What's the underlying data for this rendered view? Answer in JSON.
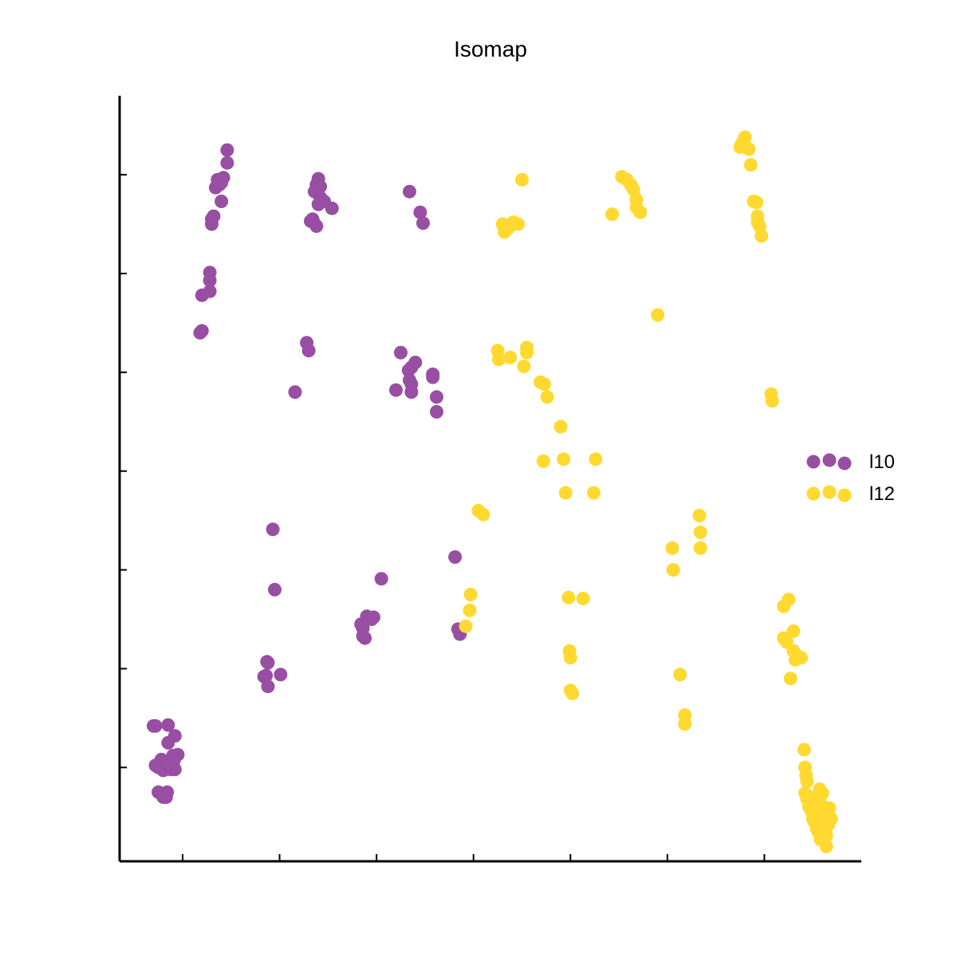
{
  "chart_data": {
    "type": "scatter",
    "title": "Isomap",
    "xlabel": "",
    "ylabel": "",
    "xlim": [
      -0.65,
      7.0
    ],
    "ylim": [
      -0.95,
      6.8
    ],
    "xticks": [
      0,
      1,
      2,
      3,
      4,
      5,
      6
    ],
    "yticks": [
      0,
      1,
      2,
      3,
      4,
      5,
      6
    ],
    "show_tick_labels": false,
    "grid": false,
    "legend_position": "right",
    "series": [
      {
        "name": "l10",
        "color": "#984ea3",
        "points": [
          [
            -0.3,
            0.42
          ],
          [
            -0.28,
            0.42
          ],
          [
            -0.15,
            0.43
          ],
          [
            -0.08,
            0.32
          ],
          [
            -0.15,
            0.25
          ],
          [
            -0.05,
            0.13
          ],
          [
            -0.1,
            0.12
          ],
          [
            -0.22,
            0.08
          ],
          [
            -0.28,
            0.02
          ],
          [
            -0.25,
            0.0
          ],
          [
            -0.2,
            -0.03
          ],
          [
            -0.12,
            -0.02
          ],
          [
            -0.08,
            -0.02
          ],
          [
            -0.18,
            -0.02
          ],
          [
            -0.09,
            0.07
          ],
          [
            -0.25,
            -0.25
          ],
          [
            -0.2,
            -0.3
          ],
          [
            -0.17,
            -0.3
          ],
          [
            -0.16,
            -0.25
          ],
          [
            0.18,
            4.4
          ],
          [
            0.2,
            4.42
          ],
          [
            0.2,
            4.78
          ],
          [
            0.28,
            4.82
          ],
          [
            0.28,
            4.93
          ],
          [
            0.28,
            5.01
          ],
          [
            0.3,
            5.5
          ],
          [
            0.3,
            5.55
          ],
          [
            0.32,
            5.58
          ],
          [
            0.34,
            5.87
          ],
          [
            0.36,
            5.95
          ],
          [
            0.4,
            5.92
          ],
          [
            0.38,
            5.9
          ],
          [
            0.42,
            5.97
          ],
          [
            0.4,
            5.73
          ],
          [
            0.46,
            6.12
          ],
          [
            0.46,
            6.25
          ],
          [
            0.84,
            0.92
          ],
          [
            0.86,
            0.93
          ],
          [
            0.87,
            1.07
          ],
          [
            0.88,
            0.82
          ],
          [
            0.88,
            1.06
          ],
          [
            0.93,
            2.41
          ],
          [
            0.95,
            1.8
          ],
          [
            1.01,
            0.94
          ],
          [
            1.16,
            3.8
          ],
          [
            1.28,
            4.3
          ],
          [
            1.3,
            4.22
          ],
          [
            1.32,
            5.53
          ],
          [
            1.35,
            5.52
          ],
          [
            1.38,
            5.48
          ],
          [
            1.34,
            5.55
          ],
          [
            1.36,
            5.83
          ],
          [
            1.38,
            5.9
          ],
          [
            1.4,
            5.96
          ],
          [
            1.42,
            5.88
          ],
          [
            1.42,
            5.77
          ],
          [
            1.4,
            5.7
          ],
          [
            1.46,
            5.73
          ],
          [
            1.54,
            5.66
          ],
          [
            1.84,
            1.45
          ],
          [
            1.86,
            1.41
          ],
          [
            1.86,
            1.33
          ],
          [
            1.88,
            1.31
          ],
          [
            1.9,
            1.53
          ],
          [
            1.95,
            1.5
          ],
          [
            1.97,
            1.52
          ],
          [
            2.05,
            1.91
          ],
          [
            2.2,
            3.82
          ],
          [
            2.25,
            4.2
          ],
          [
            2.34,
            5.83
          ],
          [
            2.33,
            4.02
          ],
          [
            2.34,
            3.92
          ],
          [
            2.36,
            3.8
          ],
          [
            2.36,
            4.05
          ],
          [
            2.36,
            3.88
          ],
          [
            2.4,
            4.1
          ],
          [
            2.45,
            5.62
          ],
          [
            2.48,
            5.51
          ],
          [
            2.58,
            3.98
          ],
          [
            2.58,
            3.95
          ],
          [
            2.62,
            3.75
          ],
          [
            2.62,
            3.6
          ],
          [
            2.81,
            2.13
          ],
          [
            2.84,
            1.4
          ],
          [
            2.86,
            1.35
          ]
        ]
      },
      {
        "name": "l12",
        "color": "#ffd92f",
        "points": [
          [
            2.92,
            1.43
          ],
          [
            2.96,
            1.59
          ],
          [
            2.97,
            1.75
          ],
          [
            3.05,
            2.6
          ],
          [
            3.1,
            2.56
          ],
          [
            3.25,
            4.22
          ],
          [
            3.26,
            4.13
          ],
          [
            3.3,
            5.5
          ],
          [
            3.32,
            5.42
          ],
          [
            3.36,
            5.46
          ],
          [
            3.38,
            4.15
          ],
          [
            3.41,
            5.52
          ],
          [
            3.46,
            5.5
          ],
          [
            3.5,
            5.95
          ],
          [
            3.52,
            4.06
          ],
          [
            3.55,
            4.2
          ],
          [
            3.55,
            4.25
          ],
          [
            3.69,
            3.9
          ],
          [
            3.72,
            3.1
          ],
          [
            3.73,
            3.88
          ],
          [
            3.76,
            3.75
          ],
          [
            3.9,
            3.45
          ],
          [
            3.93,
            3.12
          ],
          [
            3.95,
            2.78
          ],
          [
            3.98,
            1.72
          ],
          [
            3.99,
            1.18
          ],
          [
            4.0,
            1.11
          ],
          [
            4.0,
            0.78
          ],
          [
            4.02,
            0.75
          ],
          [
            4.13,
            1.71
          ],
          [
            4.24,
            2.78
          ],
          [
            4.26,
            3.12
          ],
          [
            4.43,
            5.6
          ],
          [
            4.53,
            5.98
          ],
          [
            4.58,
            5.95
          ],
          [
            4.62,
            5.9
          ],
          [
            4.65,
            5.85
          ],
          [
            4.68,
            5.75
          ],
          [
            4.68,
            5.67
          ],
          [
            4.72,
            5.62
          ],
          [
            4.9,
            4.58
          ],
          [
            5.05,
            2.22
          ],
          [
            5.06,
            2.0
          ],
          [
            5.13,
            0.94
          ],
          [
            5.18,
            0.53
          ],
          [
            5.18,
            0.44
          ],
          [
            5.33,
            2.55
          ],
          [
            5.34,
            2.38
          ],
          [
            5.34,
            2.22
          ],
          [
            5.75,
            6.28
          ],
          [
            5.77,
            6.32
          ],
          [
            5.8,
            6.38
          ],
          [
            5.82,
            6.27
          ],
          [
            5.84,
            6.26
          ],
          [
            5.86,
            6.1
          ],
          [
            5.89,
            5.73
          ],
          [
            5.92,
            5.72
          ],
          [
            5.93,
            5.58
          ],
          [
            5.93,
            5.52
          ],
          [
            5.95,
            5.48
          ],
          [
            5.97,
            5.38
          ],
          [
            6.07,
            3.78
          ],
          [
            6.08,
            3.71
          ],
          [
            6.2,
            1.63
          ],
          [
            6.2,
            1.31
          ],
          [
            6.23,
            1.27
          ],
          [
            6.25,
            1.7
          ],
          [
            6.27,
            0.9
          ],
          [
            6.3,
            1.38
          ],
          [
            6.3,
            1.18
          ],
          [
            6.32,
            1.09
          ],
          [
            6.34,
            1.13
          ],
          [
            6.38,
            1.11
          ],
          [
            6.41,
            0.18
          ],
          [
            6.42,
            0.0
          ],
          [
            6.43,
            -0.08
          ],
          [
            6.44,
            -0.14
          ],
          [
            6.42,
            -0.26
          ],
          [
            6.44,
            -0.32
          ],
          [
            6.46,
            -0.4
          ],
          [
            6.48,
            -0.38
          ],
          [
            6.49,
            -0.45
          ],
          [
            6.5,
            -0.52
          ],
          [
            6.52,
            -0.56
          ],
          [
            6.54,
            -0.62
          ],
          [
            6.56,
            -0.66
          ],
          [
            6.55,
            -0.28
          ],
          [
            6.57,
            -0.22
          ],
          [
            6.57,
            -0.34
          ],
          [
            6.58,
            -0.5
          ],
          [
            6.58,
            -0.73
          ],
          [
            6.6,
            -0.26
          ],
          [
            6.61,
            -0.44
          ],
          [
            6.61,
            -0.57
          ],
          [
            6.63,
            -0.58
          ],
          [
            6.64,
            -0.69
          ],
          [
            6.64,
            -0.8
          ],
          [
            6.66,
            -0.58
          ],
          [
            6.66,
            -0.48
          ],
          [
            6.67,
            -0.41
          ],
          [
            6.69,
            -0.52
          ]
        ]
      }
    ]
  }
}
